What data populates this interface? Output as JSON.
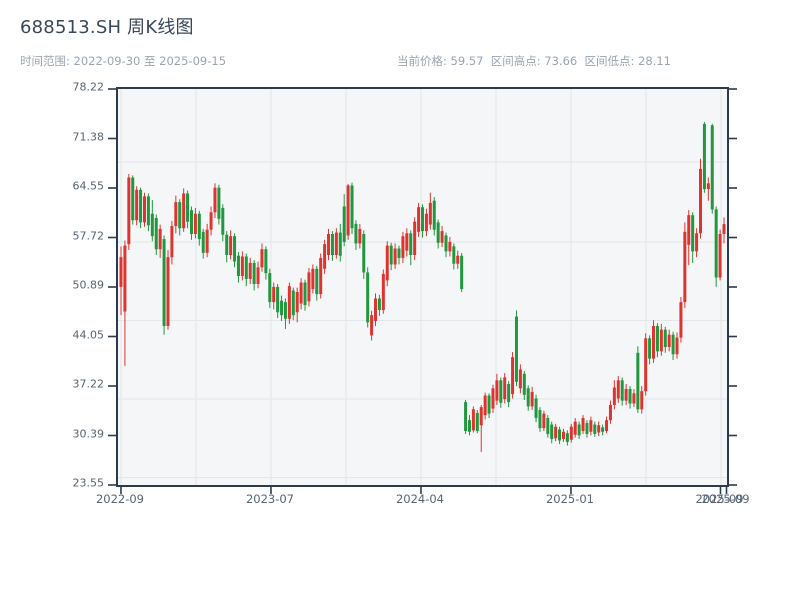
{
  "header": {
    "title": "688513.SH 周K线图",
    "meta_left": "时间范围: 2022-09-30 至 2025-09-15",
    "meta_right": "当前价格: 59.57  区间高点: 73.66  区间低点: 28.11"
  },
  "chart_data": {
    "type": "candlestick",
    "title": "688513.SH 周K线图",
    "frequency": "weekly",
    "date_range": {
      "start": "2022-09-30",
      "end": "2025-09-15"
    },
    "current_price": 59.57,
    "range_high": 73.66,
    "range_low": 28.11,
    "legend": "none",
    "grid": {
      "h_fractions": [
        0.1843,
        0.3864,
        0.5846,
        0.7828,
        0.981
      ],
      "v_fractions": [
        0.0049,
        0.1281,
        0.2512,
        0.3744,
        0.4975,
        0.6207,
        0.7438,
        0.867,
        0.9901
      ]
    },
    "y_axis": {
      "min": 23.55,
      "max": 78.22,
      "ticks": [
        "78.22",
        "71.38",
        "64.55",
        "57.72",
        "50.89",
        "44.05",
        "37.22",
        "30.39",
        "23.55"
      ]
    },
    "x_axis": {
      "ticks": [
        {
          "label": "2022-09",
          "f": 0.0049
        },
        {
          "label": "2023-07",
          "f": 0.2512
        },
        {
          "label": "2024-04",
          "f": 0.4975
        },
        {
          "label": "2025-01",
          "f": 0.7438
        },
        {
          "label": "2025-09",
          "f": 0.9893
        },
        {
          "label": "2025-09",
          "f": 0.9992
        }
      ]
    },
    "colors": {
      "up": "#dc3530",
      "down": "#21973e",
      "grid": "#e1e7ea",
      "spine": "#2b3a4d",
      "plot_bg": "#f4f6f7"
    },
    "ohlc": [
      [
        50.9,
        56.5,
        47.0,
        55.0
      ],
      [
        47.5,
        57.3,
        40.0,
        56.6
      ],
      [
        56.8,
        66.5,
        56.0,
        66.0
      ],
      [
        66.0,
        66.3,
        59.5,
        60.1
      ],
      [
        60.1,
        64.8,
        59.4,
        64.3
      ],
      [
        64.3,
        64.6,
        59.0,
        59.8
      ],
      [
        59.8,
        63.9,
        59.2,
        63.4
      ],
      [
        63.4,
        63.8,
        58.6,
        59.4
      ],
      [
        61.0,
        62.9,
        57.2,
        57.9
      ],
      [
        60.4,
        60.9,
        55.3,
        56.1
      ],
      [
        56.1,
        59.5,
        54.9,
        58.9
      ],
      [
        57.5,
        58.0,
        44.3,
        45.5
      ],
      [
        45.5,
        56.0,
        45.0,
        55.0
      ],
      [
        55.0,
        60.0,
        54.0,
        59.3
      ],
      [
        59.3,
        63.5,
        58.3,
        62.6
      ],
      [
        62.6,
        63.0,
        58.0,
        59.0
      ],
      [
        59.0,
        64.5,
        58.5,
        63.8
      ],
      [
        63.8,
        64.2,
        59.0,
        59.9
      ],
      [
        61.5,
        62.0,
        57.4,
        58.2
      ],
      [
        58.2,
        61.8,
        57.6,
        61.0
      ],
      [
        61.0,
        61.4,
        56.6,
        57.5
      ],
      [
        58.5,
        58.9,
        54.8,
        55.6
      ],
      [
        55.6,
        59.6,
        55.0,
        58.8
      ],
      [
        58.8,
        62.0,
        58.0,
        61.2
      ],
      [
        61.2,
        65.2,
        60.4,
        64.6
      ],
      [
        64.6,
        65.0,
        59.5,
        60.3
      ],
      [
        61.8,
        62.3,
        57.2,
        58.1
      ],
      [
        58.1,
        58.6,
        54.3,
        55.3
      ],
      [
        55.3,
        58.7,
        54.7,
        57.9
      ],
      [
        57.9,
        58.3,
        53.6,
        54.4
      ],
      [
        55.2,
        55.7,
        51.5,
        52.4
      ],
      [
        52.4,
        55.8,
        51.8,
        55.1
      ],
      [
        55.1,
        55.5,
        51.0,
        52.0
      ],
      [
        52.0,
        54.9,
        51.3,
        54.2
      ],
      [
        54.2,
        54.6,
        50.4,
        51.3
      ],
      [
        51.3,
        54.4,
        50.7,
        53.6
      ],
      [
        53.6,
        56.9,
        53.0,
        56.1
      ],
      [
        56.1,
        56.5,
        51.9,
        52.8
      ],
      [
        52.8,
        53.4,
        48.0,
        48.8
      ],
      [
        48.8,
        51.5,
        47.8,
        50.9
      ],
      [
        50.9,
        51.3,
        46.6,
        47.4
      ],
      [
        49.0,
        49.7,
        46.2,
        47.0
      ],
      [
        48.8,
        49.3,
        45.1,
        46.5
      ],
      [
        46.5,
        51.5,
        45.8,
        51.0
      ],
      [
        50.4,
        50.8,
        46.3,
        47.0
      ],
      [
        47.4,
        50.8,
        46.0,
        50.2
      ],
      [
        48.6,
        52.1,
        47.8,
        51.5
      ],
      [
        51.5,
        51.9,
        47.6,
        48.4
      ],
      [
        48.9,
        53.5,
        48.2,
        52.9
      ],
      [
        50.6,
        54.0,
        50.0,
        53.4
      ],
      [
        53.4,
        53.8,
        49.0,
        49.9
      ],
      [
        49.9,
        55.5,
        49.3,
        54.9
      ],
      [
        53.4,
        57.4,
        52.7,
        56.8
      ],
      [
        55.3,
        58.9,
        54.6,
        58.2
      ],
      [
        58.2,
        58.6,
        54.5,
        55.3
      ],
      [
        55.3,
        59.0,
        54.8,
        58.4
      ],
      [
        58.4,
        59.6,
        54.4,
        55.2
      ],
      [
        62.0,
        63.7,
        56.5,
        57.1
      ],
      [
        58.0,
        65.1,
        57.4,
        64.9
      ],
      [
        64.9,
        65.3,
        58.2,
        59.0
      ],
      [
        59.6,
        60.1,
        56.0,
        56.9
      ],
      [
        56.9,
        59.6,
        56.2,
        58.9
      ],
      [
        58.2,
        58.7,
        52.0,
        52.9
      ],
      [
        52.9,
        53.6,
        45.3,
        46.0
      ],
      [
        44.2,
        47.6,
        43.5,
        47.0
      ],
      [
        46.2,
        50.0,
        45.5,
        49.3
      ],
      [
        49.3,
        49.8,
        46.9,
        47.7
      ],
      [
        47.7,
        53.3,
        47.2,
        52.7
      ],
      [
        51.8,
        57.2,
        51.0,
        56.6
      ],
      [
        56.6,
        57.0,
        53.2,
        54.0
      ],
      [
        54.0,
        56.9,
        53.4,
        56.2
      ],
      [
        56.2,
        56.6,
        54.0,
        54.9
      ],
      [
        54.9,
        58.5,
        54.2,
        57.9
      ],
      [
        55.9,
        59.0,
        55.1,
        58.3
      ],
      [
        58.3,
        58.7,
        53.9,
        55.3
      ],
      [
        55.3,
        60.5,
        54.6,
        59.9
      ],
      [
        58.5,
        62.5,
        57.8,
        61.9
      ],
      [
        61.9,
        62.3,
        57.7,
        58.6
      ],
      [
        58.6,
        61.7,
        57.9,
        61.0
      ],
      [
        59.5,
        63.9,
        58.8,
        62.5
      ],
      [
        62.8,
        63.3,
        58.0,
        58.8
      ],
      [
        59.8,
        60.2,
        56.2,
        57.0
      ],
      [
        57.0,
        59.3,
        56.4,
        58.6
      ],
      [
        58.0,
        58.4,
        55.0,
        55.8
      ],
      [
        55.8,
        57.8,
        55.1,
        57.1
      ],
      [
        56.5,
        56.9,
        53.3,
        54.1
      ],
      [
        54.1,
        55.9,
        53.4,
        55.2
      ],
      [
        55.2,
        55.6,
        50.2,
        50.6
      ],
      [
        35.0,
        35.3,
        30.6,
        31.0
      ],
      [
        32.5,
        33.2,
        30.4,
        30.9
      ],
      [
        31.1,
        34.4,
        30.8,
        34.0
      ],
      [
        33.5,
        33.9,
        30.7,
        31.0
      ],
      [
        31.8,
        34.6,
        28.11,
        34.3
      ],
      [
        33.2,
        36.3,
        32.6,
        35.9
      ],
      [
        35.9,
        36.2,
        32.8,
        33.4
      ],
      [
        34.1,
        37.4,
        33.5,
        36.9
      ],
      [
        35.2,
        38.9,
        34.6,
        38.0
      ],
      [
        38.0,
        38.4,
        34.2,
        34.9
      ],
      [
        35.4,
        39.0,
        34.8,
        38.4
      ],
      [
        37.5,
        37.9,
        34.3,
        35.0
      ],
      [
        36.1,
        41.9,
        35.5,
        41.2
      ],
      [
        46.8,
        47.66,
        37.2,
        37.8
      ],
      [
        36.9,
        40.2,
        36.2,
        39.5
      ],
      [
        38.9,
        39.3,
        35.3,
        36.0
      ],
      [
        36.9,
        37.3,
        33.8,
        34.4
      ],
      [
        34.4,
        37.1,
        33.9,
        36.4
      ],
      [
        35.5,
        36.0,
        32.2,
        32.8
      ],
      [
        33.9,
        34.3,
        30.9,
        31.4
      ],
      [
        31.4,
        33.8,
        31.0,
        33.4
      ],
      [
        32.8,
        33.2,
        30.1,
        30.6
      ],
      [
        31.9,
        32.3,
        29.3,
        29.9
      ],
      [
        30.0,
        32.0,
        29.6,
        31.6
      ],
      [
        31.2,
        31.6,
        29.2,
        29.7
      ],
      [
        29.9,
        31.3,
        29.5,
        30.9
      ],
      [
        30.7,
        31.1,
        29.0,
        29.5
      ],
      [
        29.8,
        32.0,
        29.4,
        31.6
      ],
      [
        30.5,
        32.8,
        30.1,
        32.3
      ],
      [
        31.9,
        32.3,
        29.9,
        30.4
      ],
      [
        31.0,
        33.2,
        30.6,
        32.8
      ],
      [
        32.1,
        32.5,
        30.1,
        30.6
      ],
      [
        30.9,
        33.0,
        30.4,
        32.5
      ],
      [
        31.9,
        32.3,
        30.2,
        30.6
      ],
      [
        30.8,
        32.3,
        30.3,
        31.8
      ],
      [
        31.5,
        31.9,
        30.4,
        30.9
      ],
      [
        31.0,
        33.0,
        30.7,
        32.5
      ],
      [
        32.5,
        35.2,
        32.0,
        34.6
      ],
      [
        34.6,
        38.0,
        34.0,
        37.0
      ],
      [
        35.5,
        38.6,
        34.9,
        38.0
      ],
      [
        38.0,
        38.4,
        34.5,
        35.2
      ],
      [
        35.2,
        37.5,
        34.6,
        36.8
      ],
      [
        36.8,
        37.2,
        34.1,
        34.8
      ],
      [
        34.8,
        36.8,
        34.3,
        36.2
      ],
      [
        41.8,
        42.7,
        33.5,
        34.0
      ],
      [
        34.0,
        37.2,
        33.4,
        36.5
      ],
      [
        36.5,
        44.5,
        35.9,
        43.8
      ],
      [
        43.8,
        44.2,
        40.2,
        41.0
      ],
      [
        41.0,
        46.3,
        40.4,
        45.5
      ],
      [
        45.5,
        45.9,
        41.2,
        42.0
      ],
      [
        42.0,
        45.8,
        41.4,
        45.0
      ],
      [
        45.0,
        45.4,
        41.8,
        42.6
      ],
      [
        42.6,
        45.0,
        42.0,
        44.3
      ],
      [
        44.3,
        44.7,
        40.8,
        41.6
      ],
      [
        41.6,
        44.6,
        41.0,
        43.9
      ],
      [
        43.9,
        49.5,
        43.2,
        48.8
      ],
      [
        48.8,
        59.8,
        48.0,
        58.5
      ],
      [
        56.7,
        61.5,
        53.9,
        60.8
      ],
      [
        60.8,
        61.2,
        54.2,
        55.8
      ],
      [
        55.8,
        59.0,
        55.0,
        58.3
      ],
      [
        58.3,
        68.6,
        57.6,
        67.2
      ],
      [
        73.4,
        73.66,
        63.9,
        64.4
      ],
      [
        64.4,
        66.0,
        62.8,
        65.2
      ],
      [
        73.2,
        73.4,
        61.0,
        61.6
      ],
      [
        61.6,
        62.0,
        50.9,
        52.2
      ],
      [
        52.2,
        58.8,
        51.8,
        58.2
      ],
      [
        58.2,
        60.5,
        56.9,
        59.57
      ]
    ]
  }
}
